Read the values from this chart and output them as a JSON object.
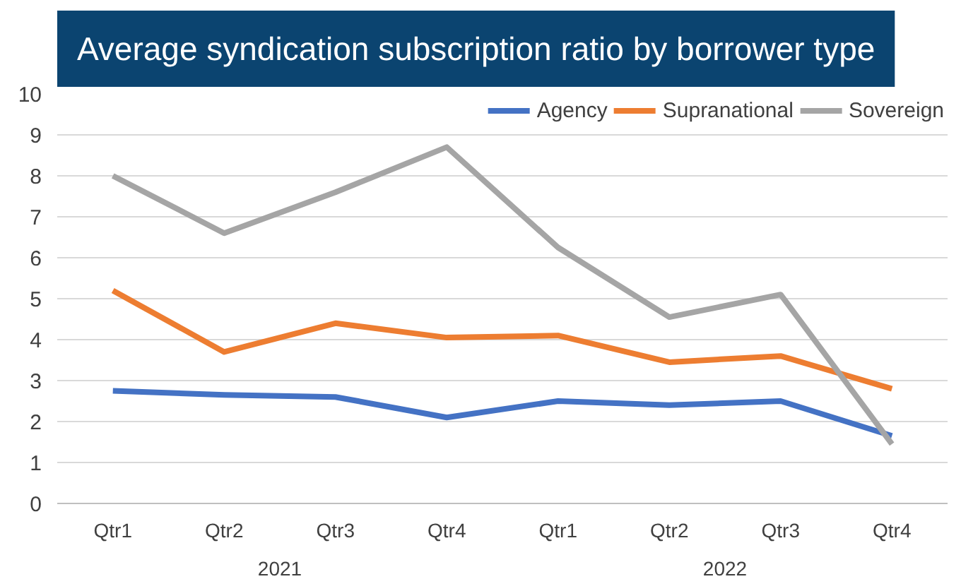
{
  "chart_data": {
    "type": "line",
    "title": "Average syndication subscription ratio by borrower type",
    "categories": [
      "Qtr1",
      "Qtr2",
      "Qtr3",
      "Qtr4",
      "Qtr1",
      "Qtr2",
      "Qtr3",
      "Qtr4"
    ],
    "annotations": [
      "2021",
      "2022"
    ],
    "series": [
      {
        "name": "Agency",
        "color": "#4472c4",
        "values": [
          2.75,
          2.65,
          2.6,
          2.1,
          2.5,
          2.4,
          2.5,
          1.65
        ]
      },
      {
        "name": "Supranational",
        "color": "#ed7d31",
        "values": [
          5.2,
          3.7,
          4.4,
          4.05,
          4.1,
          3.45,
          3.6,
          2.8
        ]
      },
      {
        "name": "Sovereign",
        "color": "#a5a5a5",
        "values": [
          8.0,
          6.6,
          7.6,
          8.7,
          6.25,
          4.55,
          5.1,
          1.45
        ]
      }
    ],
    "ylim": [
      0,
      10
    ],
    "yticks": [
      0,
      1,
      2,
      3,
      4,
      5,
      6,
      7,
      8,
      9,
      10
    ],
    "grid": "y",
    "legend": "top right",
    "line_style": "solid"
  }
}
